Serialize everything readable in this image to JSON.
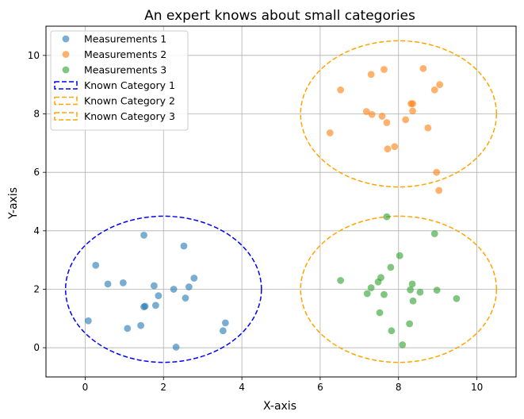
{
  "chart_data": {
    "type": "scatter",
    "title": "An expert knows about small categories",
    "xlabel": "X-axis",
    "ylabel": "Y-axis",
    "xlim": [
      -1,
      11
    ],
    "ylim": [
      -1,
      11
    ],
    "xticks": [
      0,
      2,
      4,
      6,
      8,
      10
    ],
    "yticks": [
      0,
      2,
      4,
      6,
      8,
      10
    ],
    "grid": true,
    "legend_position": "top-left",
    "series": [
      {
        "name": "Measurements 1",
        "color": "#1f77b4",
        "points": [
          [
            0.08,
            0.92
          ],
          [
            0.27,
            2.82
          ],
          [
            0.58,
            2.18
          ],
          [
            0.97,
            2.22
          ],
          [
            1.08,
            0.66
          ],
          [
            1.42,
            0.76
          ],
          [
            1.5,
            3.85
          ],
          [
            1.5,
            1.4
          ],
          [
            1.53,
            1.42
          ],
          [
            1.76,
            2.12
          ],
          [
            1.8,
            1.45
          ],
          [
            1.87,
            1.78
          ],
          [
            2.26,
            2.0
          ],
          [
            2.32,
            0.02
          ],
          [
            2.52,
            3.48
          ],
          [
            2.56,
            1.7
          ],
          [
            2.65,
            2.08
          ],
          [
            2.78,
            2.38
          ],
          [
            3.52,
            0.58
          ],
          [
            3.58,
            0.85
          ]
        ]
      },
      {
        "name": "Measurements 2",
        "color": "#ff7f0e",
        "points": [
          [
            6.25,
            7.35
          ],
          [
            6.52,
            8.82
          ],
          [
            7.18,
            8.08
          ],
          [
            7.3,
            9.35
          ],
          [
            7.32,
            7.98
          ],
          [
            7.58,
            7.92
          ],
          [
            7.63,
            9.52
          ],
          [
            7.7,
            7.7
          ],
          [
            7.72,
            6.8
          ],
          [
            7.9,
            6.88
          ],
          [
            8.18,
            7.8
          ],
          [
            8.32,
            8.35
          ],
          [
            8.36,
            8.35
          ],
          [
            8.36,
            8.1
          ],
          [
            8.63,
            9.55
          ],
          [
            8.75,
            7.52
          ],
          [
            8.92,
            8.82
          ],
          [
            8.97,
            6.0
          ],
          [
            9.03,
            5.38
          ],
          [
            9.05,
            9.0
          ]
        ]
      },
      {
        "name": "Measurements 3",
        "color": "#2ca02c",
        "points": [
          [
            6.52,
            2.3
          ],
          [
            7.2,
            1.85
          ],
          [
            7.3,
            2.05
          ],
          [
            7.48,
            2.25
          ],
          [
            7.52,
            1.2
          ],
          [
            7.55,
            2.4
          ],
          [
            7.63,
            1.82
          ],
          [
            7.7,
            4.48
          ],
          [
            7.8,
            2.75
          ],
          [
            7.82,
            0.58
          ],
          [
            8.03,
            3.15
          ],
          [
            8.1,
            0.1
          ],
          [
            8.28,
            0.82
          ],
          [
            8.3,
            1.98
          ],
          [
            8.35,
            2.18
          ],
          [
            8.37,
            1.6
          ],
          [
            8.55,
            1.9
          ],
          [
            8.92,
            3.9
          ],
          [
            8.98,
            1.97
          ],
          [
            9.48,
            1.68
          ]
        ]
      }
    ],
    "regions": [
      {
        "name": "Known Category 1",
        "cx": 2,
        "cy": 2,
        "rx": 2.5,
        "ry": 2.5,
        "color": "#0000ff"
      },
      {
        "name": "Known Category 2",
        "cx": 8,
        "cy": 8,
        "rx": 2.5,
        "ry": 2.5,
        "color": "#ffa500"
      },
      {
        "name": "Known Category 3",
        "cx": 8,
        "cy": 2,
        "rx": 2.5,
        "ry": 2.5,
        "color": "#ffa500"
      }
    ]
  }
}
